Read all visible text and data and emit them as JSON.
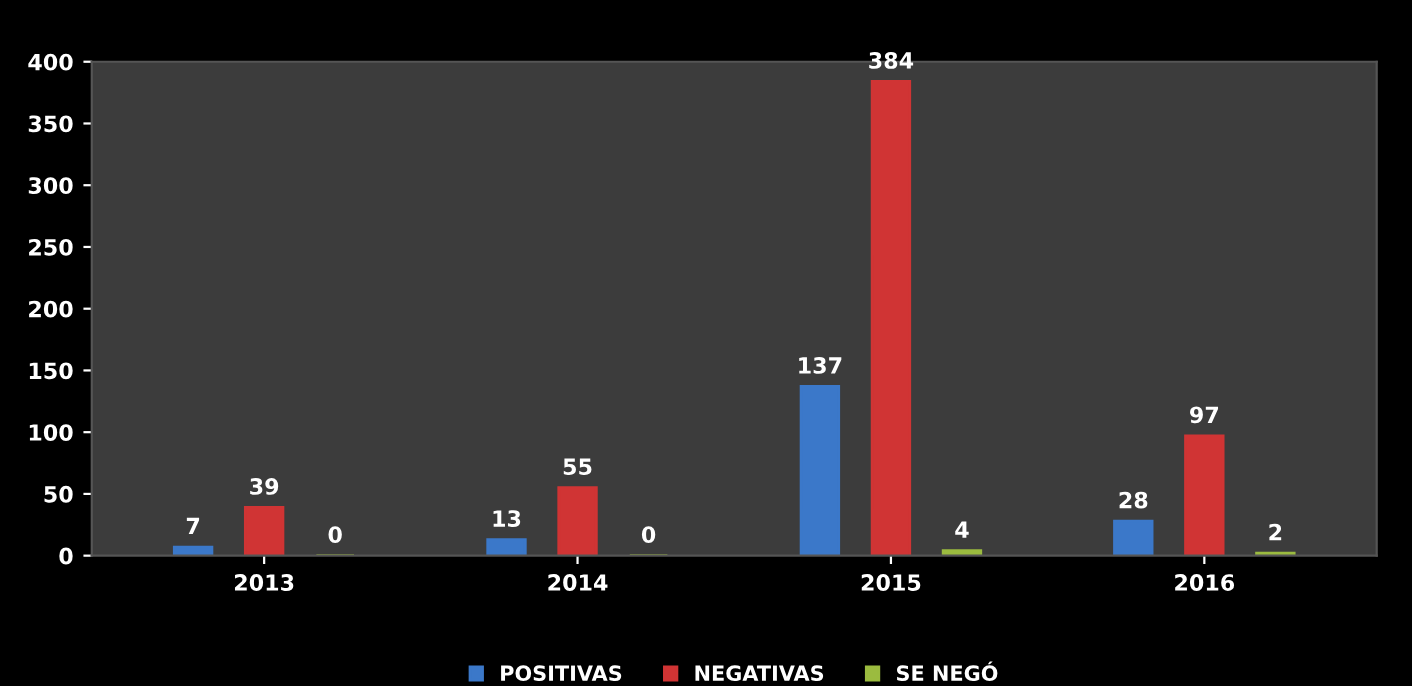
{
  "chart_data": {
    "type": "bar",
    "categories": [
      "2013",
      "2014",
      "2015",
      "2016"
    ],
    "series": [
      {
        "name": "POSITIVAS",
        "color": "#3b78c9",
        "values": [
          7,
          13,
          137,
          28
        ]
      },
      {
        "name": "NEGATIVAS",
        "color": "#d03434",
        "values": [
          39,
          55,
          384,
          97
        ]
      },
      {
        "name": "SE NEGÓ",
        "color": "#9bbb3f",
        "values": [
          0,
          0,
          4,
          2
        ]
      }
    ],
    "ylim": [
      0,
      400
    ],
    "yticks": [
      0,
      50,
      100,
      150,
      200,
      250,
      300,
      350,
      400
    ],
    "data_labels": true,
    "legend": "bottom",
    "grid": false
  }
}
